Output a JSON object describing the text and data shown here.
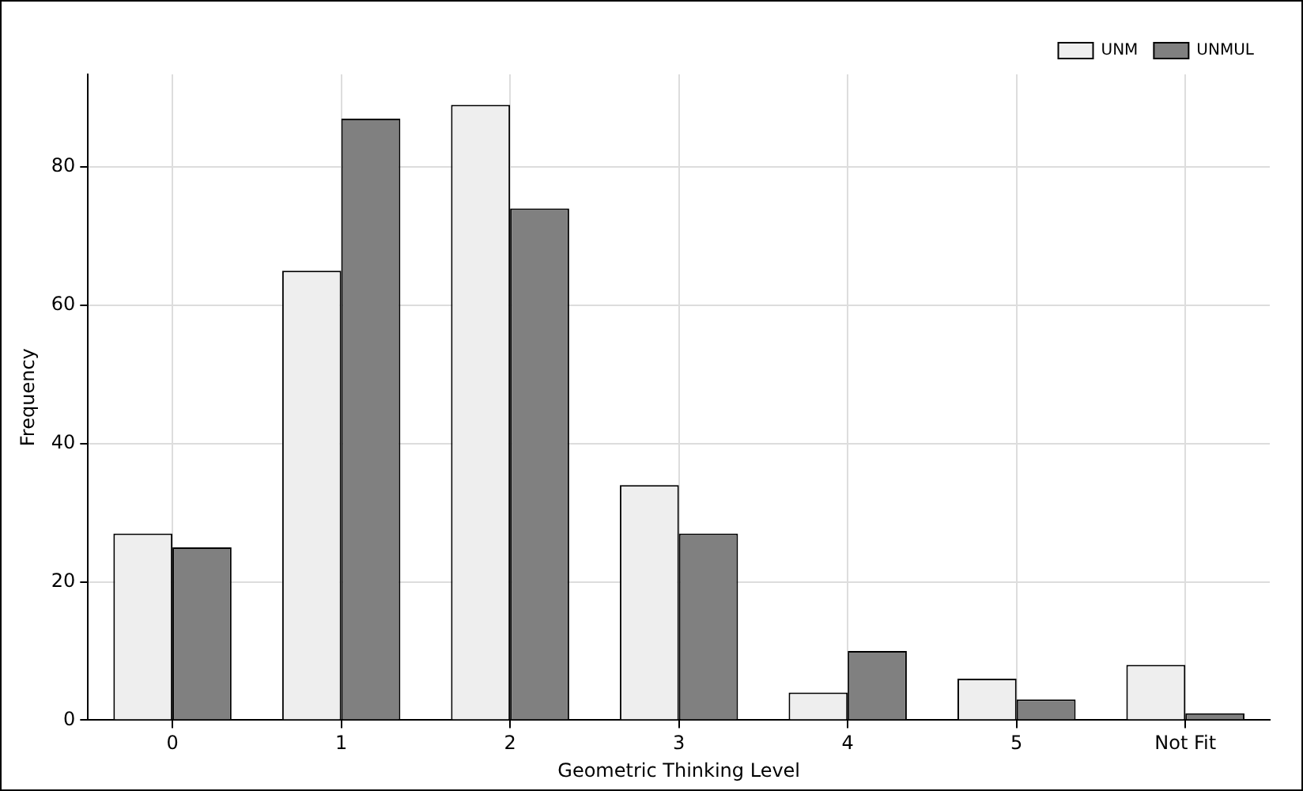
{
  "chart_data": {
    "type": "bar",
    "xlabel": "Geometric Thinking Level",
    "ylabel": "Frequency",
    "categories": [
      "0",
      "1",
      "2",
      "3",
      "4",
      "5",
      "Not Fit"
    ],
    "series": [
      {
        "name": "UNM",
        "color": "#eeeeee",
        "values": [
          27,
          65,
          89,
          34,
          4,
          6,
          8
        ]
      },
      {
        "name": "UNMUL",
        "color": "#808080",
        "values": [
          25,
          87,
          74,
          27,
          10,
          3,
          1
        ]
      }
    ],
    "ylim": [
      0,
      93.4
    ],
    "yticks": [
      0,
      20,
      40,
      60,
      80
    ],
    "grid": true,
    "legend": "top right"
  }
}
